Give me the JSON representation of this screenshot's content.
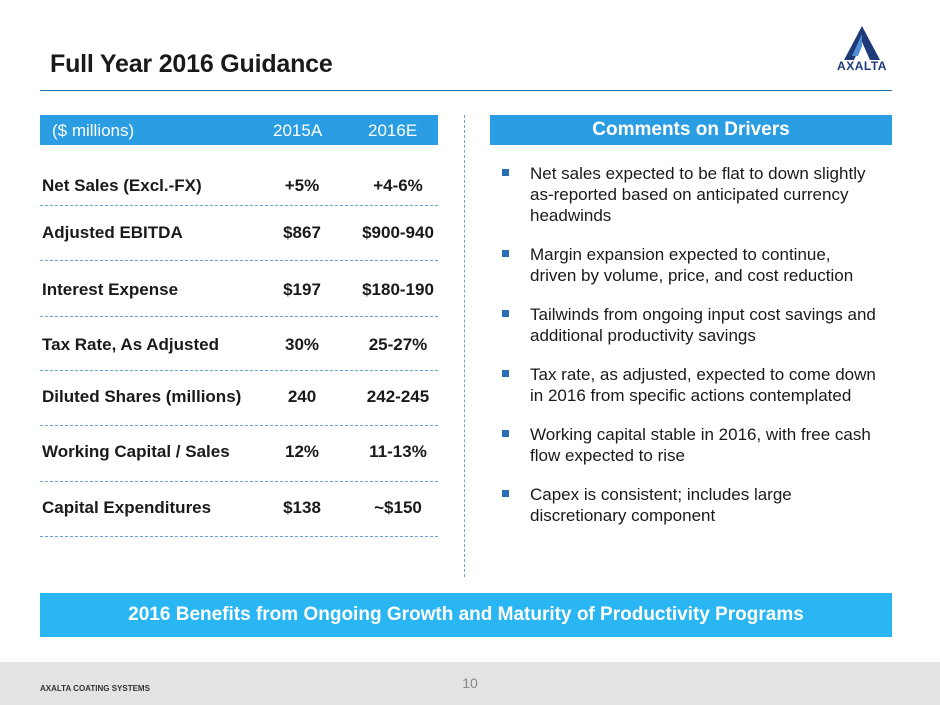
{
  "header": {
    "title": "Full Year 2016 Guidance",
    "logo_text": "AXALTA"
  },
  "table": {
    "unit_label": "($ millions)",
    "col_2015": "2015A",
    "col_2016": "2016E",
    "rows": [
      {
        "label": "Net Sales (Excl.-FX)",
        "v2015": "+5%",
        "v2016": "+4-6%"
      },
      {
        "label": "Adjusted EBITDA",
        "v2015": "$867",
        "v2016": "$900-940"
      },
      {
        "label": "Interest Expense",
        "v2015": "$197",
        "v2016": "$180-190"
      },
      {
        "label": "Tax Rate, As Adjusted",
        "v2015": "30%",
        "v2016": "25-27%"
      },
      {
        "label": "Diluted Shares (millions)",
        "v2015": "240",
        "v2016": "242-245"
      },
      {
        "label": "Working Capital / Sales",
        "v2015": "12%",
        "v2016": "11-13%"
      },
      {
        "label": "Capital Expenditures",
        "v2015": "$138",
        "v2016": "~$150"
      }
    ]
  },
  "comments": {
    "title": "Comments on Drivers",
    "bullets": [
      "Net sales expected to be flat to down slightly as-reported based on anticipated currency headwinds",
      "Margin expansion expected to continue, driven by volume, price, and cost reduction",
      "Tailwinds from ongoing input cost savings and additional productivity savings",
      "Tax rate, as adjusted, expected to come down in 2016 from specific actions contemplated",
      "Working capital stable in 2016, with free cash flow expected to rise",
      "Capex is consistent; includes large discretionary component"
    ]
  },
  "banner": "2016 Benefits from Ongoing Growth and Maturity of Productivity Programs",
  "footer": {
    "company": "AXALTA COATING SYSTEMS",
    "page": "10"
  },
  "colors": {
    "header_blue": "#2a9de3",
    "banner_blue": "#29b6f2",
    "logo_navy": "#1e3a78"
  }
}
